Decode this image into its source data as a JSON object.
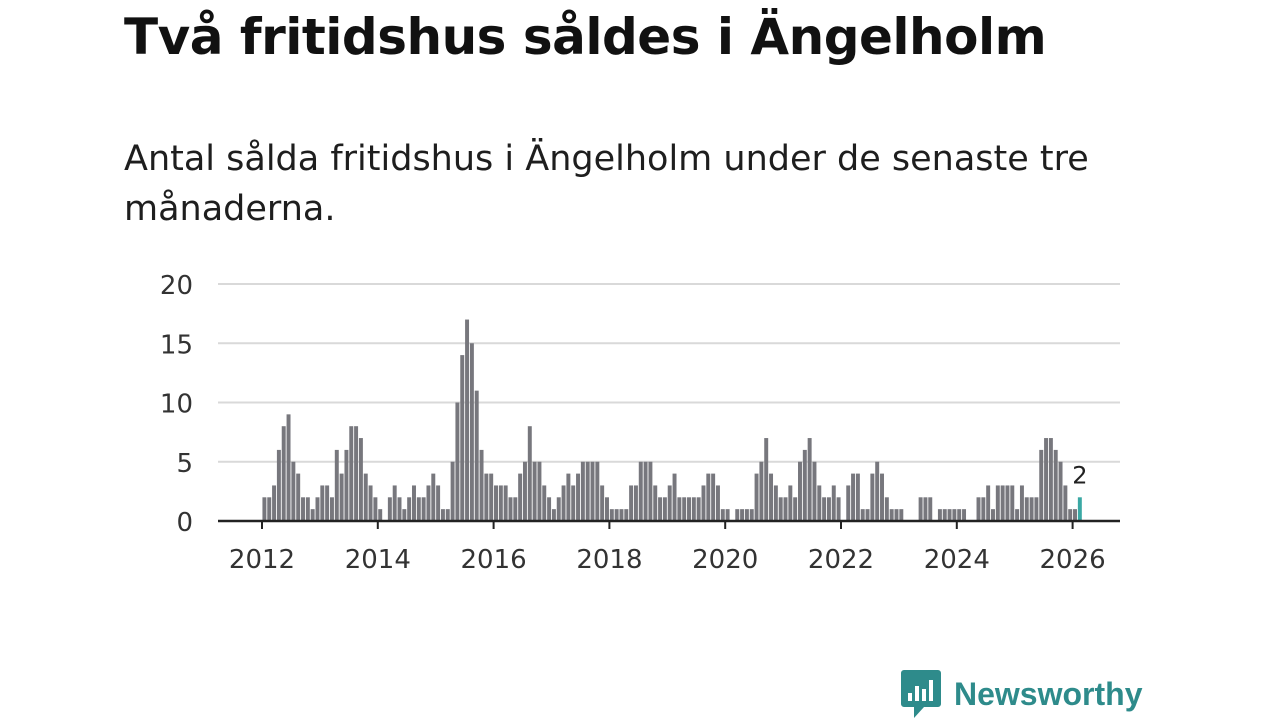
{
  "headline": "Två fritidshus såldes i Ängelholm",
  "subtitle": "Antal sålda fritidshus i Ängelholm under de senaste tre månaderna.",
  "brand": {
    "name": "Newsworthy",
    "color": "#2e8b8b"
  },
  "colors": {
    "bar": "#77777d",
    "highlight": "#3aa8a4",
    "grid": "#d9d9d9",
    "axis": "#222222"
  },
  "chart_data": {
    "type": "bar",
    "title": "Antal sålda fritidshus i Ängelholm",
    "xlabel": "",
    "ylabel": "",
    "ylim": [
      0,
      20
    ],
    "yticks": [
      "0",
      "5",
      "10",
      "15",
      "20"
    ],
    "xticks": [
      "2012",
      "2014",
      "2016",
      "2018",
      "2020",
      "2022",
      "2024",
      "2026"
    ],
    "start": "2012-01",
    "end": "2026-02",
    "frequency": "monthly (rolling three-month total)",
    "values": [
      2,
      2,
      3,
      6,
      8,
      9,
      5,
      4,
      2,
      2,
      1,
      2,
      3,
      3,
      2,
      6,
      4,
      6,
      8,
      8,
      7,
      4,
      3,
      2,
      1,
      0,
      2,
      3,
      2,
      1,
      2,
      3,
      2,
      2,
      3,
      4,
      3,
      1,
      1,
      5,
      10,
      14,
      17,
      15,
      11,
      6,
      4,
      4,
      3,
      3,
      3,
      2,
      2,
      4,
      5,
      8,
      5,
      5,
      3,
      2,
      1,
      2,
      3,
      4,
      3,
      4,
      5,
      5,
      5,
      5,
      3,
      2,
      1,
      1,
      1,
      1,
      3,
      3,
      5,
      5,
      5,
      3,
      2,
      2,
      3,
      4,
      2,
      2,
      2,
      2,
      2,
      3,
      4,
      4,
      3,
      1,
      1,
      0,
      1,
      1,
      1,
      1,
      4,
      5,
      7,
      4,
      3,
      2,
      2,
      3,
      2,
      5,
      6,
      7,
      5,
      3,
      2,
      2,
      3,
      2,
      0,
      3,
      4,
      4,
      1,
      1,
      4,
      5,
      4,
      2,
      1,
      1,
      1,
      0,
      0,
      0,
      2,
      2,
      2,
      0,
      1,
      1,
      1,
      1,
      1,
      1,
      0,
      0,
      2,
      2,
      3,
      1,
      3,
      3,
      3,
      3,
      1,
      3,
      2,
      2,
      2,
      6,
      7,
      7,
      6,
      5,
      3,
      1,
      1,
      2
    ],
    "highlight": {
      "label": "2",
      "value": 2,
      "index": 169
    }
  }
}
